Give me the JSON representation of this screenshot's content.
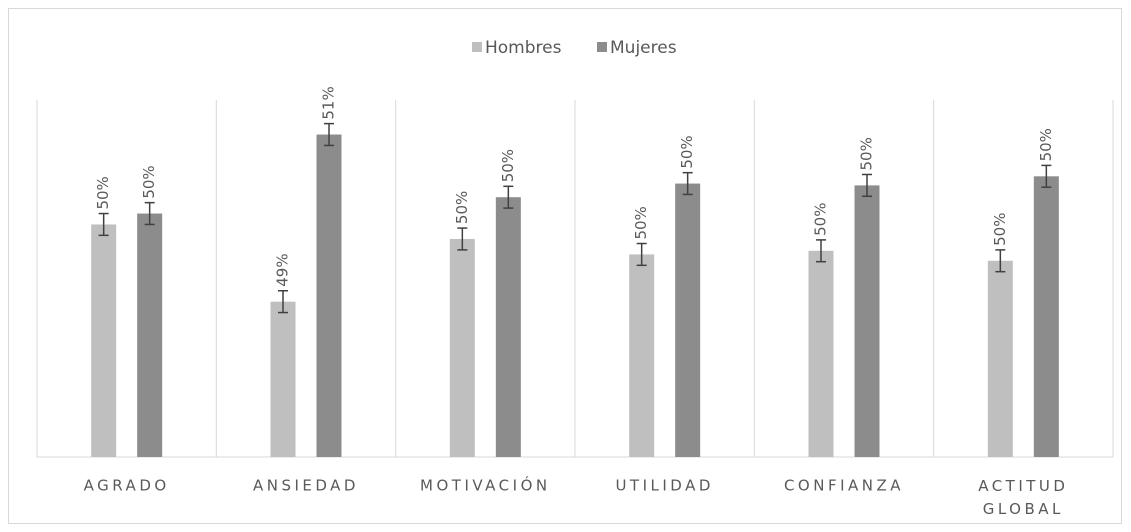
{
  "chart_data": {
    "type": "bar",
    "categories": [
      "AGRADO",
      "ANSIEDAD",
      "MOTIVACIÓN",
      "UTILIDAD",
      "CONFIANZA",
      "ACTITUD GLOBAL"
    ],
    "series": [
      {
        "name": "Hombres",
        "color": "#bfbfbf",
        "values": [
          49.91,
          49.06,
          49.75,
          49.58,
          49.62,
          49.51
        ],
        "errors": [
          0.12,
          0.12,
          0.12,
          0.12,
          0.12,
          0.12
        ],
        "value_labels": [
          "50%",
          "49%",
          "50%",
          "50%",
          "50%",
          "50%"
        ]
      },
      {
        "name": "Mujeres",
        "color": "#8c8c8c",
        "values": [
          50.03,
          50.9,
          50.21,
          50.36,
          50.34,
          50.44
        ],
        "errors": [
          0.12,
          0.12,
          0.12,
          0.12,
          0.12,
          0.12
        ],
        "value_labels": [
          "50%",
          "51%",
          "50%",
          "50%",
          "50%",
          "50%"
        ]
      }
    ],
    "ylim": [
      47.35,
      51.28
    ],
    "legend": "top"
  }
}
